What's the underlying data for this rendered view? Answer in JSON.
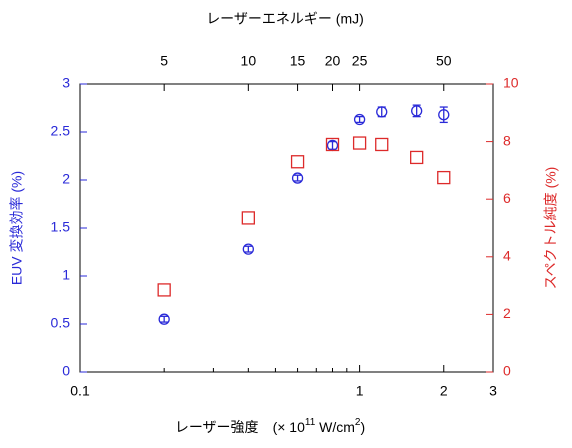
{
  "chart_data": {
    "type": "scatter",
    "x_label": "レーザー強度",
    "x_unit": [
      "(× 10",
      "11",
      " W/cm",
      "2",
      ")"
    ],
    "x2_label": "レーザーエネルギー (mJ)",
    "y_label": "EUV 変換効率 (%)",
    "y2_label": "スペクトル純度 (%)",
    "xscale": "log",
    "xlim": [
      0.1,
      3
    ],
    "xticks": [
      0.1,
      1,
      2,
      3
    ],
    "xminor": [
      0.2,
      0.3,
      0.4,
      0.5,
      0.6,
      0.7,
      0.8,
      0.9
    ],
    "x2lim": [
      2.5,
      75
    ],
    "x2ticks": [
      5,
      10,
      15,
      20,
      25,
      50
    ],
    "ylim": [
      0,
      3
    ],
    "yticks": [
      0,
      0.5,
      1,
      1.5,
      2,
      2.5,
      3
    ],
    "y2lim": [
      0,
      10
    ],
    "y2ticks": [
      0,
      2,
      4,
      6,
      8,
      10
    ],
    "x": [
      0.2,
      0.4,
      0.6,
      0.8,
      1.0,
      1.2,
      1.6,
      2.0
    ],
    "series": [
      {
        "color": "#2a2ad8",
        "marker": "circle",
        "values": [
          0.55,
          1.28,
          2.02,
          2.36,
          2.63,
          2.71,
          2.72,
          2.68
        ],
        "errors": [
          0.03,
          0.03,
          0.03,
          0.04,
          0.03,
          0.05,
          0.06,
          0.08
        ]
      },
      {
        "color": "#dd2a2a",
        "marker": "square",
        "axis": "y2",
        "values": [
          2.85,
          5.35,
          7.3,
          7.9,
          7.95,
          7.9,
          7.45,
          6.75
        ]
      }
    ]
  }
}
